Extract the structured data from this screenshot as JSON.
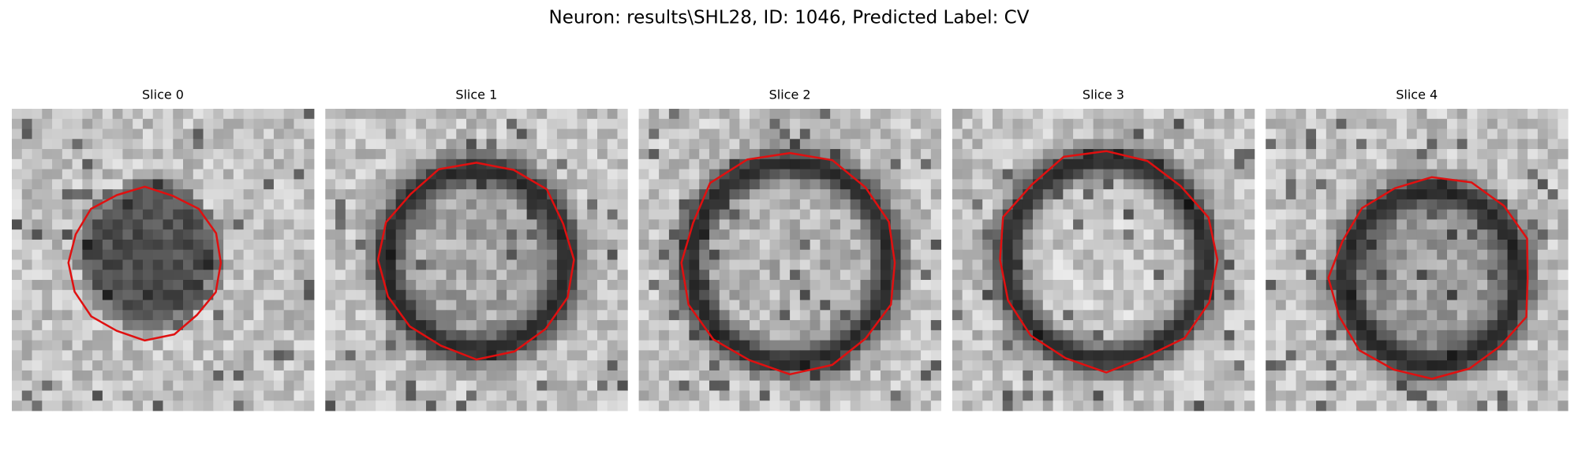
{
  "header": {
    "title": "Neuron: results\\SHL28, ID: 1046, Predicted Label: CV"
  },
  "panels": [
    {
      "title": "Slice 0"
    },
    {
      "title": "Slice 1"
    },
    {
      "title": "Slice 2"
    },
    {
      "title": "Slice 3"
    },
    {
      "title": "Slice 4"
    }
  ]
}
